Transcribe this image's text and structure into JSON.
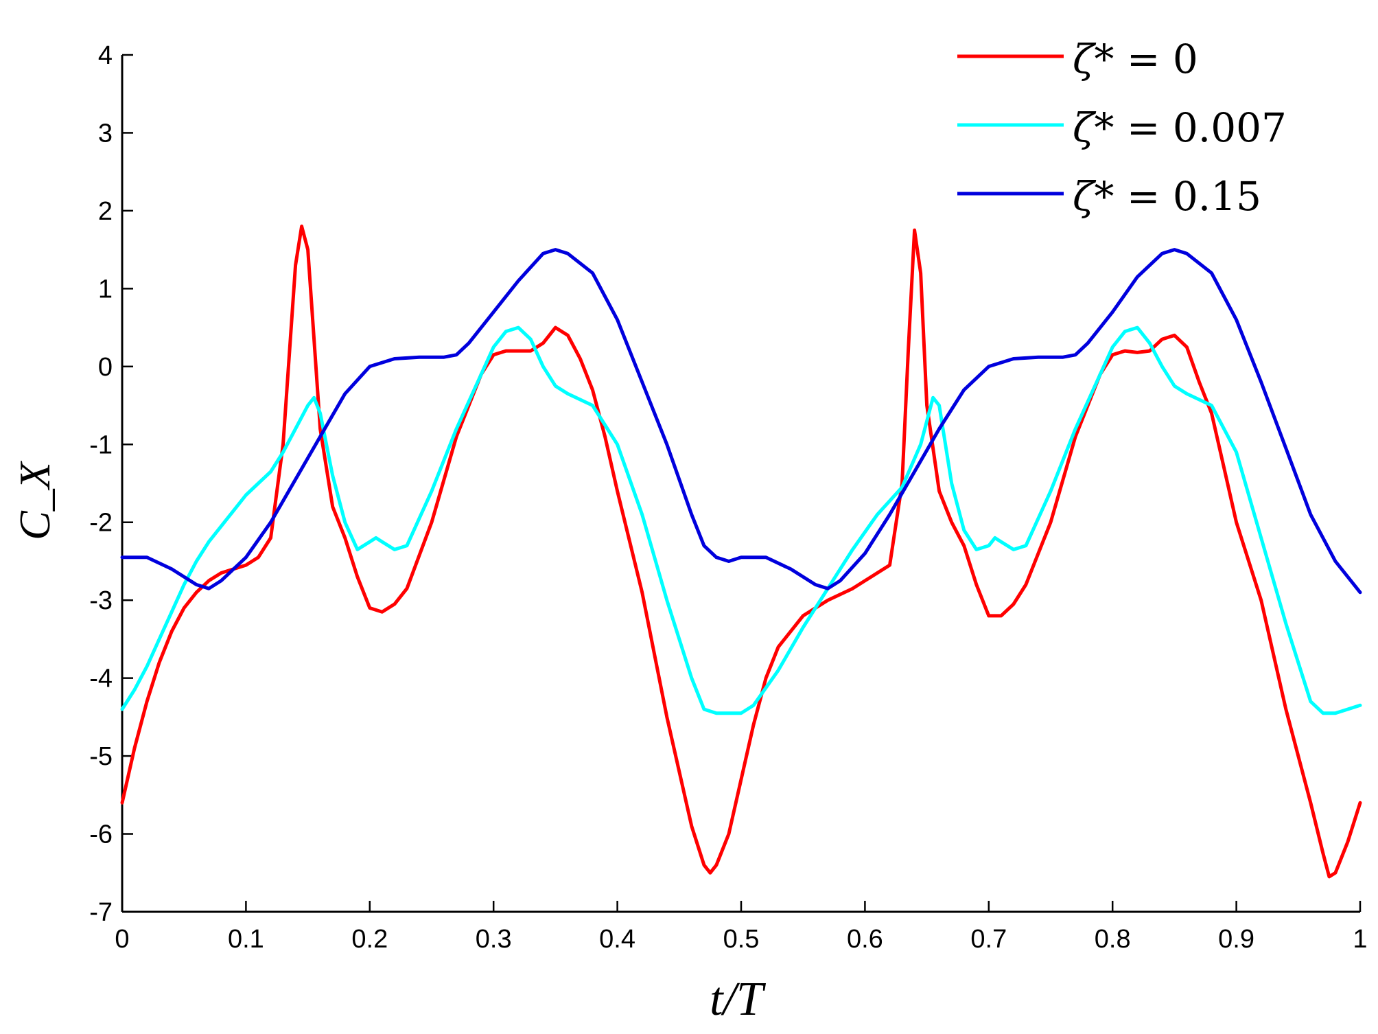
{
  "chart_data": {
    "type": "line",
    "title": "",
    "xlabel": "t/T",
    "ylabel": "C_X",
    "xlim": [
      0,
      1
    ],
    "ylim": [
      -7,
      4
    ],
    "xticks": [
      0,
      0.1,
      0.2,
      0.3,
      0.4,
      0.5,
      0.6,
      0.7,
      0.8,
      0.9,
      1
    ],
    "xtick_labels": [
      "0",
      "0.1",
      "0.2",
      "0.3",
      "0.4",
      "0.5",
      "0.6",
      "0.7",
      "0.8",
      "0.9",
      "1"
    ],
    "yticks": [
      4,
      3,
      2,
      1,
      0,
      -1,
      -2,
      -3,
      -4,
      -5,
      -6,
      -7
    ],
    "ytick_labels": [
      "4",
      "3",
      "2",
      "1",
      "0",
      "-1",
      "-2",
      "-3",
      "-4",
      "-5",
      "-6",
      "-7"
    ],
    "grid": false,
    "legend_position": "top-right",
    "series": [
      {
        "name": "ζ* = 0",
        "legend_symbol": "ζ*",
        "legend_value": "= 0",
        "color": "#ff0000",
        "x": [
          0,
          0.01,
          0.02,
          0.03,
          0.04,
          0.05,
          0.06,
          0.07,
          0.08,
          0.09,
          0.1,
          0.11,
          0.12,
          0.13,
          0.14,
          0.145,
          0.15,
          0.16,
          0.17,
          0.18,
          0.19,
          0.2,
          0.21,
          0.22,
          0.23,
          0.25,
          0.27,
          0.29,
          0.3,
          0.31,
          0.32,
          0.33,
          0.34,
          0.35,
          0.36,
          0.37,
          0.38,
          0.39,
          0.4,
          0.42,
          0.44,
          0.46,
          0.47,
          0.475,
          0.48,
          0.49,
          0.5,
          0.51,
          0.52,
          0.53,
          0.55,
          0.57,
          0.59,
          0.6,
          0.61,
          0.62,
          0.63,
          0.635,
          0.64,
          0.645,
          0.65,
          0.66,
          0.67,
          0.68,
          0.69,
          0.7,
          0.71,
          0.72,
          0.73,
          0.75,
          0.77,
          0.79,
          0.8,
          0.81,
          0.82,
          0.83,
          0.84,
          0.85,
          0.86,
          0.87,
          0.88,
          0.89,
          0.9,
          0.92,
          0.94,
          0.96,
          0.97,
          0.975,
          0.98,
          0.99,
          1.0
        ],
        "y": [
          -5.6,
          -4.9,
          -4.3,
          -3.8,
          -3.4,
          -3.1,
          -2.9,
          -2.75,
          -2.65,
          -2.6,
          -2.55,
          -2.45,
          -2.2,
          -1.0,
          1.3,
          1.8,
          1.5,
          -0.8,
          -1.8,
          -2.2,
          -2.7,
          -3.1,
          -3.15,
          -3.05,
          -2.85,
          -2.0,
          -0.9,
          -0.1,
          0.15,
          0.2,
          0.2,
          0.2,
          0.3,
          0.5,
          0.4,
          0.1,
          -0.3,
          -0.9,
          -1.6,
          -2.9,
          -4.5,
          -5.9,
          -6.4,
          -6.5,
          -6.4,
          -6.0,
          -5.3,
          -4.6,
          -4.0,
          -3.6,
          -3.2,
          -3.0,
          -2.85,
          -2.75,
          -2.65,
          -2.55,
          -1.5,
          0.2,
          1.75,
          1.2,
          -0.5,
          -1.6,
          -2.0,
          -2.3,
          -2.8,
          -3.2,
          -3.2,
          -3.05,
          -2.8,
          -2.0,
          -0.9,
          -0.1,
          0.15,
          0.2,
          0.18,
          0.2,
          0.35,
          0.4,
          0.25,
          -0.2,
          -0.6,
          -1.3,
          -2.0,
          -3.0,
          -4.4,
          -5.6,
          -6.25,
          -6.55,
          -6.5,
          -6.1,
          -5.6
        ]
      },
      {
        "name": "ζ* = 0.007",
        "legend_symbol": "ζ*",
        "legend_value": "= 0.007",
        "color": "#00ffff",
        "x": [
          0,
          0.01,
          0.02,
          0.03,
          0.04,
          0.05,
          0.06,
          0.07,
          0.08,
          0.09,
          0.1,
          0.11,
          0.12,
          0.13,
          0.14,
          0.15,
          0.155,
          0.16,
          0.17,
          0.18,
          0.19,
          0.2,
          0.205,
          0.21,
          0.22,
          0.23,
          0.25,
          0.27,
          0.29,
          0.3,
          0.31,
          0.32,
          0.33,
          0.34,
          0.35,
          0.36,
          0.38,
          0.4,
          0.42,
          0.44,
          0.46,
          0.47,
          0.48,
          0.49,
          0.5,
          0.51,
          0.53,
          0.55,
          0.57,
          0.59,
          0.61,
          0.63,
          0.645,
          0.655,
          0.66,
          0.67,
          0.68,
          0.69,
          0.7,
          0.705,
          0.71,
          0.72,
          0.73,
          0.75,
          0.77,
          0.79,
          0.8,
          0.81,
          0.82,
          0.83,
          0.84,
          0.85,
          0.86,
          0.88,
          0.9,
          0.92,
          0.94,
          0.96,
          0.97,
          0.98,
          0.99,
          1.0
        ],
        "y": [
          -4.4,
          -4.15,
          -3.85,
          -3.5,
          -3.15,
          -2.8,
          -2.5,
          -2.25,
          -2.05,
          -1.85,
          -1.65,
          -1.5,
          -1.35,
          -1.1,
          -0.8,
          -0.5,
          -0.4,
          -0.6,
          -1.4,
          -2.0,
          -2.35,
          -2.25,
          -2.2,
          -2.25,
          -2.35,
          -2.3,
          -1.6,
          -0.8,
          -0.1,
          0.25,
          0.45,
          0.5,
          0.35,
          0.0,
          -0.25,
          -0.35,
          -0.5,
          -1.0,
          -1.9,
          -3.0,
          -4.0,
          -4.4,
          -4.45,
          -4.45,
          -4.45,
          -4.35,
          -3.9,
          -3.35,
          -2.85,
          -2.35,
          -1.9,
          -1.55,
          -1.0,
          -0.4,
          -0.5,
          -1.5,
          -2.1,
          -2.35,
          -2.3,
          -2.2,
          -2.25,
          -2.35,
          -2.3,
          -1.6,
          -0.8,
          -0.1,
          0.25,
          0.45,
          0.5,
          0.3,
          0.0,
          -0.25,
          -0.35,
          -0.5,
          -1.1,
          -2.2,
          -3.3,
          -4.3,
          -4.45,
          -4.45,
          -4.4,
          -4.35
        ]
      },
      {
        "name": "ζ* = 0.15",
        "legend_symbol": "ζ*",
        "legend_value": "= 0.15",
        "color": "#0000dd",
        "x": [
          0,
          0.02,
          0.04,
          0.06,
          0.07,
          0.08,
          0.1,
          0.12,
          0.14,
          0.16,
          0.18,
          0.2,
          0.22,
          0.24,
          0.26,
          0.27,
          0.28,
          0.3,
          0.32,
          0.34,
          0.35,
          0.36,
          0.38,
          0.4,
          0.42,
          0.44,
          0.46,
          0.47,
          0.48,
          0.49,
          0.5,
          0.52,
          0.54,
          0.56,
          0.57,
          0.58,
          0.6,
          0.62,
          0.64,
          0.66,
          0.68,
          0.7,
          0.72,
          0.74,
          0.76,
          0.77,
          0.78,
          0.8,
          0.82,
          0.84,
          0.85,
          0.86,
          0.88,
          0.9,
          0.92,
          0.94,
          0.96,
          0.98,
          1.0
        ],
        "y": [
          -2.45,
          -2.45,
          -2.6,
          -2.8,
          -2.85,
          -2.75,
          -2.45,
          -2.0,
          -1.45,
          -0.9,
          -0.35,
          0.0,
          0.1,
          0.12,
          0.12,
          0.15,
          0.3,
          0.7,
          1.1,
          1.45,
          1.5,
          1.45,
          1.2,
          0.6,
          -0.2,
          -1.0,
          -1.9,
          -2.3,
          -2.45,
          -2.5,
          -2.45,
          -2.45,
          -2.6,
          -2.8,
          -2.85,
          -2.75,
          -2.4,
          -1.9,
          -1.35,
          -0.8,
          -0.3,
          0.0,
          0.1,
          0.12,
          0.12,
          0.15,
          0.3,
          0.7,
          1.15,
          1.45,
          1.5,
          1.45,
          1.2,
          0.6,
          -0.2,
          -1.05,
          -1.9,
          -2.5,
          -2.9
        ]
      }
    ]
  }
}
